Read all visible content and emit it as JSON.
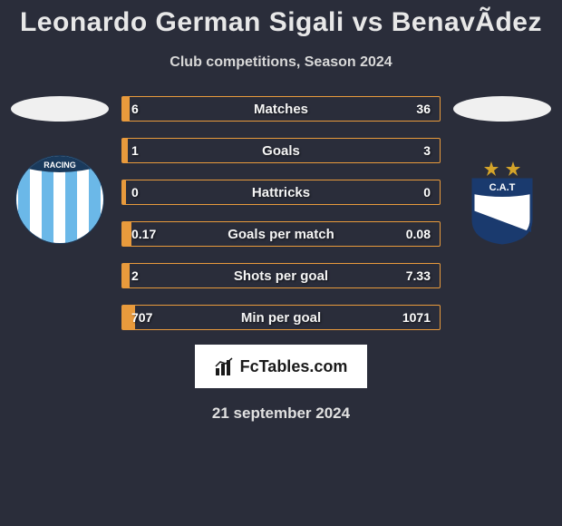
{
  "title": "Leonardo German Sigali vs BenavÃ­dez",
  "subtitle": "Club competitions, Season 2024",
  "brand": "FcTables.com",
  "date": "21 september 2024",
  "colors": {
    "background": "#2a2d3a",
    "bar_border": "#e89a3c",
    "bar_fill": "#e89a3c",
    "text": "#ffffff"
  },
  "player_left": {
    "club_name": "Racing",
    "club_logo": {
      "stripes": [
        "#6bb8e8",
        "#ffffff",
        "#6bb8e8",
        "#ffffff",
        "#6bb8e8",
        "#ffffff",
        "#6bb8e8"
      ],
      "border": "#1a3a5c",
      "text": "RACING",
      "text_bg": "#1a3a5c"
    }
  },
  "player_right": {
    "club_name": "CAT",
    "club_logo": {
      "shield_top": "#1a3a6e",
      "shield_bottom": "#ffffff",
      "diag": "#1a3a6e",
      "text": "C.A.T",
      "star_color": "#d4a42a"
    }
  },
  "stats": [
    {
      "label": "Matches",
      "left_val": "6",
      "right_val": "36",
      "left_num": 6,
      "right_num": 36,
      "left_fill_pct": 14,
      "right_fill_pct": 86,
      "left_better": false
    },
    {
      "label": "Goals",
      "left_val": "1",
      "right_val": "3",
      "left_num": 1,
      "right_num": 3,
      "left_fill_pct": 25,
      "right_fill_pct": 75,
      "left_better": false
    },
    {
      "label": "Hattricks",
      "left_val": "0",
      "right_val": "0",
      "left_num": 0,
      "right_num": 0,
      "left_fill_pct": 0,
      "right_fill_pct": 0,
      "left_better": false
    },
    {
      "label": "Goals per match",
      "left_val": "0.17",
      "right_val": "0.08",
      "left_num": 0.17,
      "right_num": 0.08,
      "left_fill_pct": 68,
      "right_fill_pct": 32,
      "left_better": true
    },
    {
      "label": "Shots per goal",
      "left_val": "2",
      "right_val": "7.33",
      "left_num": 2,
      "right_num": 7.33,
      "left_fill_pct": 21,
      "right_fill_pct": 79,
      "left_better": true
    },
    {
      "label": "Min per goal",
      "left_val": "707",
      "right_val": "1071",
      "left_num": 707,
      "right_num": 1071,
      "left_fill_pct": 40,
      "right_fill_pct": 60,
      "left_better": true
    }
  ]
}
